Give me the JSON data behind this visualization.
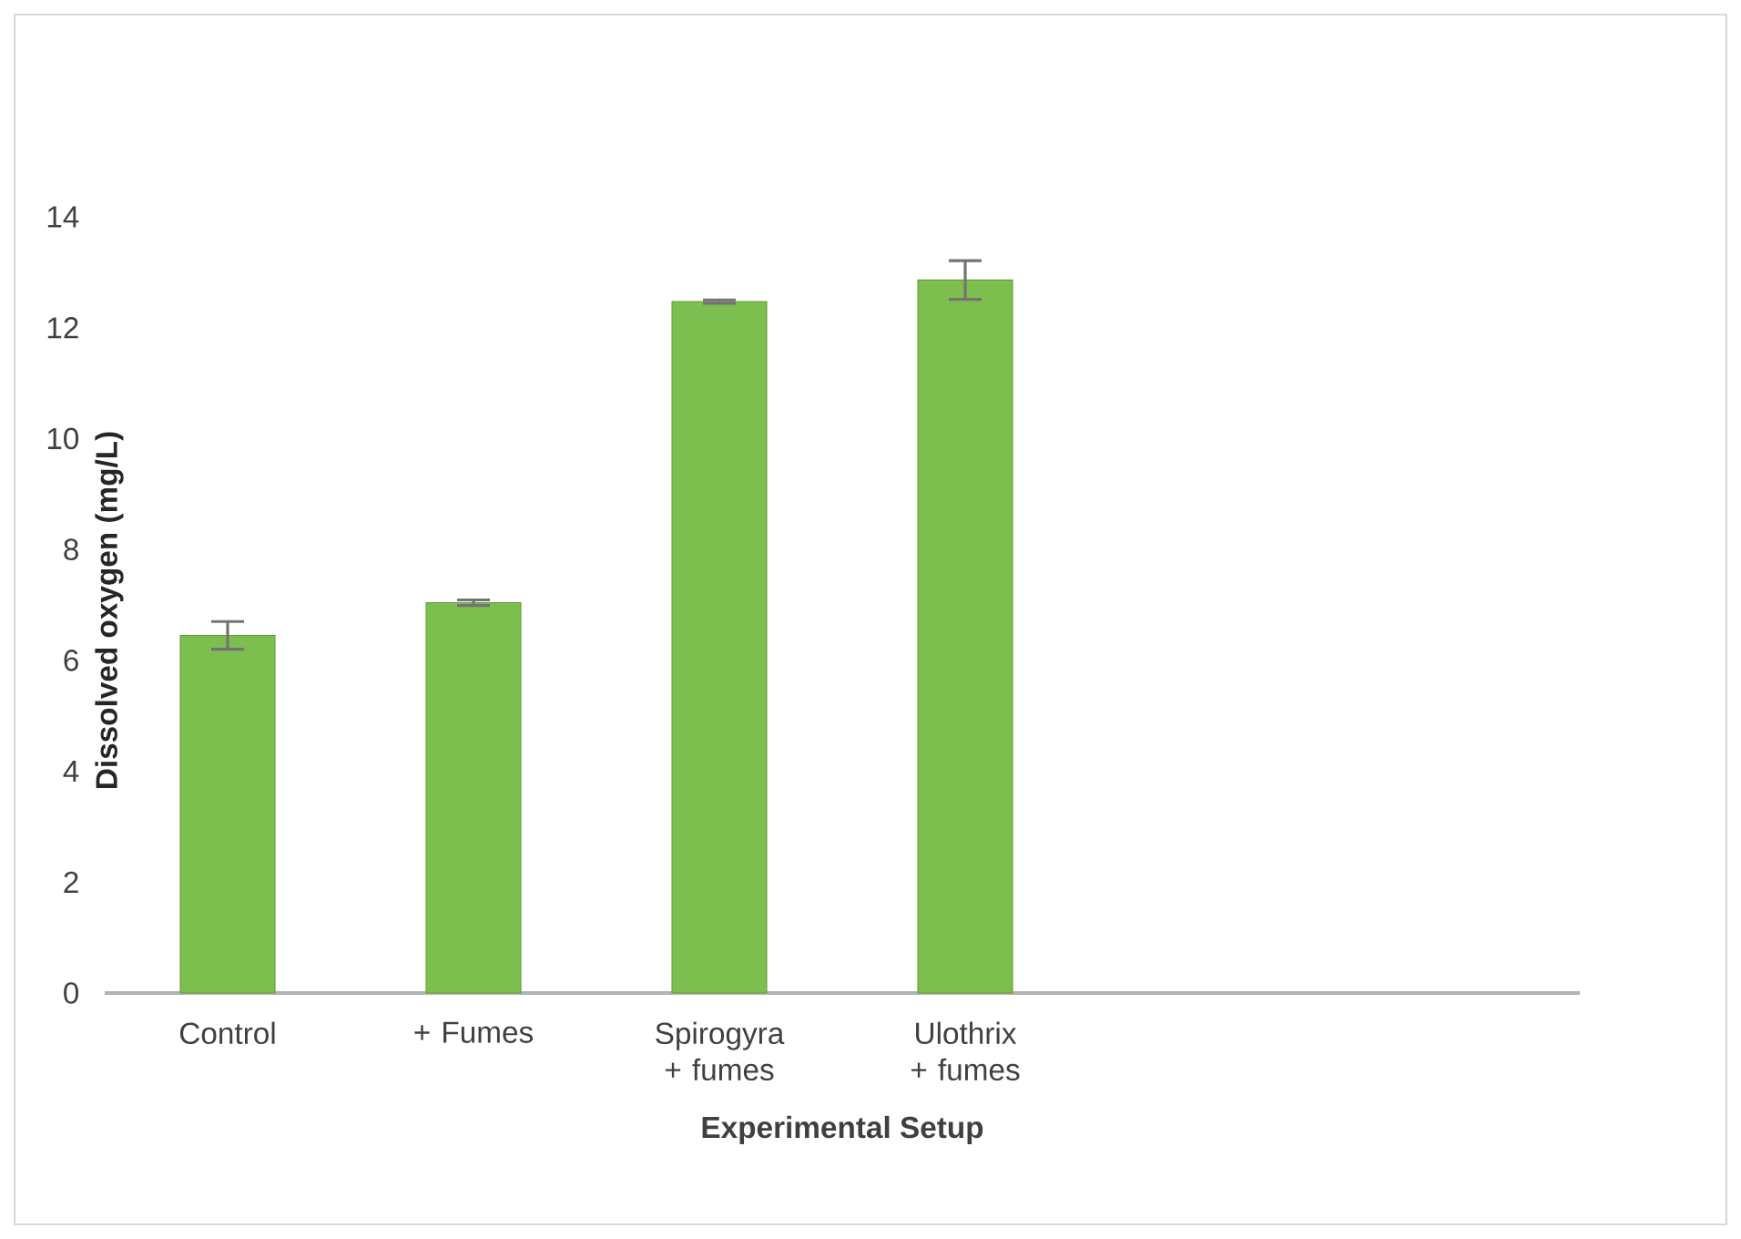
{
  "chart_data": {
    "type": "bar",
    "xlabel": "Experimental Setup",
    "ylabel": "Dissolved oxygen (mg/L)",
    "categories": [
      "Control",
      "+ Fumes",
      "Spirogyra + fumes",
      "Ulothrix + fumes",
      null,
      null
    ],
    "values": [
      6.45,
      7.04,
      12.47,
      12.86,
      null,
      null
    ],
    "errors": [
      0.25,
      0.05,
      0.03,
      0.35,
      null,
      null
    ],
    "color": "#7cbf4f",
    "ylim": [
      0,
      14
    ],
    "yticks": [
      0,
      2,
      4,
      6,
      8,
      10,
      12,
      14
    ]
  }
}
